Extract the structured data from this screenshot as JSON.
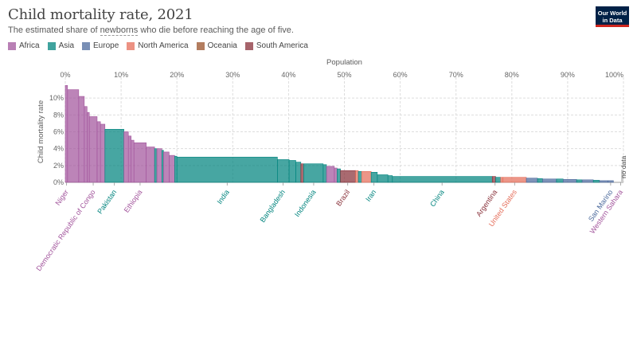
{
  "header": {
    "title": "Child mortality rate, 2021",
    "subtitle_pre": "The estimated share of ",
    "subtitle_link": "newborns",
    "subtitle_post": " who die before reaching the age of five.",
    "logo_line1": "Our World",
    "logo_line2": "in Data"
  },
  "legend": [
    {
      "label": "Africa",
      "color": "#a2559c"
    },
    {
      "label": "Asia",
      "color": "#00847e"
    },
    {
      "label": "Europe",
      "color": "#4c6a9c"
    },
    {
      "label": "North America",
      "color": "#e56e5a"
    },
    {
      "label": "Oceania",
      "color": "#9a5129"
    },
    {
      "label": "South America",
      "color": "#883039"
    }
  ],
  "chart_data": {
    "type": "variable-width bar (marimekko)",
    "xlabel": "Population",
    "ylabel": "Child mortality rate",
    "x_ticks": [
      "0%",
      "10%",
      "20%",
      "30%",
      "40%",
      "50%",
      "60%",
      "70%",
      "80%",
      "90%",
      "100%"
    ],
    "y_ticks": [
      "0%",
      "2%",
      "4%",
      "6%",
      "8%",
      "10%"
    ],
    "x_range": [
      0,
      100
    ],
    "y_range": [
      0,
      12
    ],
    "no_data_label": "no data",
    "series": [
      {
        "name": "Niger",
        "region": "Africa",
        "start": 0,
        "width": 0.4,
        "value": 11.5
      },
      {
        "name": "Africa (highest group)",
        "region": "Africa",
        "start": 0.4,
        "width": 2.0,
        "value": 11.0
      },
      {
        "name": "Africa group",
        "region": "Africa",
        "start": 2.4,
        "width": 1.0,
        "value": 10.2
      },
      {
        "name": "Africa group",
        "region": "Africa",
        "start": 3.4,
        "width": 0.5,
        "value": 9.0
      },
      {
        "name": "Africa group",
        "region": "Africa",
        "start": 3.9,
        "width": 0.4,
        "value": 8.3
      },
      {
        "name": "Democratic Republic of Congo",
        "region": "Africa",
        "start": 4.3,
        "width": 1.4,
        "value": 7.8
      },
      {
        "name": "Africa group",
        "region": "Africa",
        "start": 5.7,
        "width": 0.6,
        "value": 7.2
      },
      {
        "name": "Africa group",
        "region": "Africa",
        "start": 6.3,
        "width": 0.8,
        "value": 6.9
      },
      {
        "name": "Pakistan",
        "region": "Asia",
        "start": 7.1,
        "width": 3.4,
        "value": 6.3
      },
      {
        "name": "Africa group",
        "region": "Africa",
        "start": 10.5,
        "width": 0.8,
        "value": 6.0
      },
      {
        "name": "Africa group",
        "region": "Africa",
        "start": 11.3,
        "width": 0.5,
        "value": 5.5
      },
      {
        "name": "Africa group",
        "region": "Africa",
        "start": 11.8,
        "width": 0.5,
        "value": 5.0
      },
      {
        "name": "Ethiopia",
        "region": "Africa",
        "start": 12.3,
        "width": 2.2,
        "value": 4.7
      },
      {
        "name": "Africa group",
        "region": "Africa",
        "start": 14.5,
        "width": 1.5,
        "value": 4.2
      },
      {
        "name": "Asia group",
        "region": "Asia",
        "start": 16.0,
        "width": 0.4,
        "value": 4.0
      },
      {
        "name": "Africa group",
        "region": "Africa",
        "start": 16.4,
        "width": 0.9,
        "value": 4.0
      },
      {
        "name": "Asia group",
        "region": "Asia",
        "start": 17.3,
        "width": 0.3,
        "value": 3.8
      },
      {
        "name": "Africa group",
        "region": "Africa",
        "start": 17.6,
        "width": 1.0,
        "value": 3.6
      },
      {
        "name": "Africa group",
        "region": "Africa",
        "start": 18.6,
        "width": 1.0,
        "value": 3.2
      },
      {
        "name": "Asia group",
        "region": "Asia",
        "start": 19.6,
        "width": 0.4,
        "value": 3.1
      },
      {
        "name": "India",
        "region": "Asia",
        "start": 20.0,
        "width": 18.0,
        "value": 3.0
      },
      {
        "name": "Bangladesh",
        "region": "Asia",
        "start": 38.0,
        "width": 2.1,
        "value": 2.7
      },
      {
        "name": "Asia group",
        "region": "Asia",
        "start": 40.1,
        "width": 1.2,
        "value": 2.6
      },
      {
        "name": "Asia group",
        "region": "Asia",
        "start": 41.3,
        "width": 0.9,
        "value": 2.4
      },
      {
        "name": "South America group",
        "region": "South America",
        "start": 42.2,
        "width": 0.5,
        "value": 2.2
      },
      {
        "name": "Indonesia",
        "region": "Asia",
        "start": 42.7,
        "width": 3.5,
        "value": 2.2
      },
      {
        "name": "Asia group",
        "region": "Asia",
        "start": 46.2,
        "width": 0.6,
        "value": 2.1
      },
      {
        "name": "Africa group",
        "region": "Africa",
        "start": 46.8,
        "width": 1.4,
        "value": 1.9
      },
      {
        "name": "Africa group",
        "region": "Africa",
        "start": 48.2,
        "width": 0.5,
        "value": 1.7
      },
      {
        "name": "Asia group",
        "region": "Asia",
        "start": 48.7,
        "width": 0.6,
        "value": 1.6
      },
      {
        "name": "Brazil",
        "region": "South America",
        "start": 49.3,
        "width": 2.7,
        "value": 1.4
      },
      {
        "name": "North America group",
        "region": "North America",
        "start": 52.0,
        "width": 0.5,
        "value": 1.4
      },
      {
        "name": "Asia group",
        "region": "Asia",
        "start": 52.5,
        "width": 0.6,
        "value": 1.3
      },
      {
        "name": "North America group",
        "region": "North America",
        "start": 53.1,
        "width": 1.7,
        "value": 1.3
      },
      {
        "name": "Iran",
        "region": "Asia",
        "start": 54.8,
        "width": 1.1,
        "value": 1.2
      },
      {
        "name": "Asia group",
        "region": "Asia",
        "start": 55.9,
        "width": 1.9,
        "value": 0.9
      },
      {
        "name": "Asia group",
        "region": "Asia",
        "start": 57.8,
        "width": 0.8,
        "value": 0.8
      },
      {
        "name": "China",
        "region": "Asia",
        "start": 58.6,
        "width": 17.9,
        "value": 0.7
      },
      {
        "name": "Argentina",
        "region": "South America",
        "start": 76.5,
        "width": 0.6,
        "value": 0.7
      },
      {
        "name": "Asia group",
        "region": "Asia",
        "start": 77.1,
        "width": 0.9,
        "value": 0.6
      },
      {
        "name": "North America group",
        "region": "North America",
        "start": 78.0,
        "width": 0.4,
        "value": 0.6
      },
      {
        "name": "United States",
        "region": "North America",
        "start": 78.4,
        "width": 4.2,
        "value": 0.6
      },
      {
        "name": "Europe group",
        "region": "Europe",
        "start": 82.6,
        "width": 2.0,
        "value": 0.5
      },
      {
        "name": "Asia group",
        "region": "Asia",
        "start": 84.6,
        "width": 0.9,
        "value": 0.45
      },
      {
        "name": "Europe group",
        "region": "Europe",
        "start": 85.5,
        "width": 2.5,
        "value": 0.4
      },
      {
        "name": "Asia group",
        "region": "Asia",
        "start": 88.0,
        "width": 1.2,
        "value": 0.4
      },
      {
        "name": "Europe group",
        "region": "Europe",
        "start": 89.2,
        "width": 2.4,
        "value": 0.35
      },
      {
        "name": "Asia group",
        "region": "Asia",
        "start": 91.6,
        "width": 1.0,
        "value": 0.3
      },
      {
        "name": "Europe group",
        "region": "Europe",
        "start": 92.6,
        "width": 2.0,
        "value": 0.3
      },
      {
        "name": "Asia group",
        "region": "Asia",
        "start": 94.6,
        "width": 1.1,
        "value": 0.25
      },
      {
        "name": "Europe group",
        "region": "Europe",
        "start": 95.7,
        "width": 1.5,
        "value": 0.2
      },
      {
        "name": "San Marino",
        "region": "Europe",
        "start": 97.2,
        "width": 1.0,
        "value": 0.2
      },
      {
        "name": "Western Sahara",
        "region": "Africa",
        "start": 98.2,
        "width": 0.6,
        "value": 0
      }
    ],
    "labels": [
      {
        "text": "Niger",
        "region": "Africa",
        "x": 0.2
      },
      {
        "text": "Democratic Republic of Congo",
        "region": "Africa",
        "x": 5.0
      },
      {
        "text": "Pakistan",
        "region": "Asia",
        "x": 8.8
      },
      {
        "text": "Ethiopia",
        "region": "Africa",
        "x": 13.4
      },
      {
        "text": "India",
        "region": "Asia",
        "x": 29.0
      },
      {
        "text": "Bangladesh",
        "region": "Asia",
        "x": 39.0
      },
      {
        "text": "Indonesia",
        "region": "Asia",
        "x": 44.5
      },
      {
        "text": "Brazil",
        "region": "South America",
        "x": 50.6
      },
      {
        "text": "Iran",
        "region": "Asia",
        "x": 55.3
      },
      {
        "text": "China",
        "region": "Asia",
        "x": 67.5
      },
      {
        "text": "Argentina",
        "region": "South America",
        "x": 77.0
      },
      {
        "text": "United States",
        "region": "North America",
        "x": 80.5
      },
      {
        "text": "San Marino",
        "region": "Europe",
        "x": 97.7
      },
      {
        "text": "Western Sahara",
        "region": "Africa",
        "x": 99.5
      }
    ]
  }
}
